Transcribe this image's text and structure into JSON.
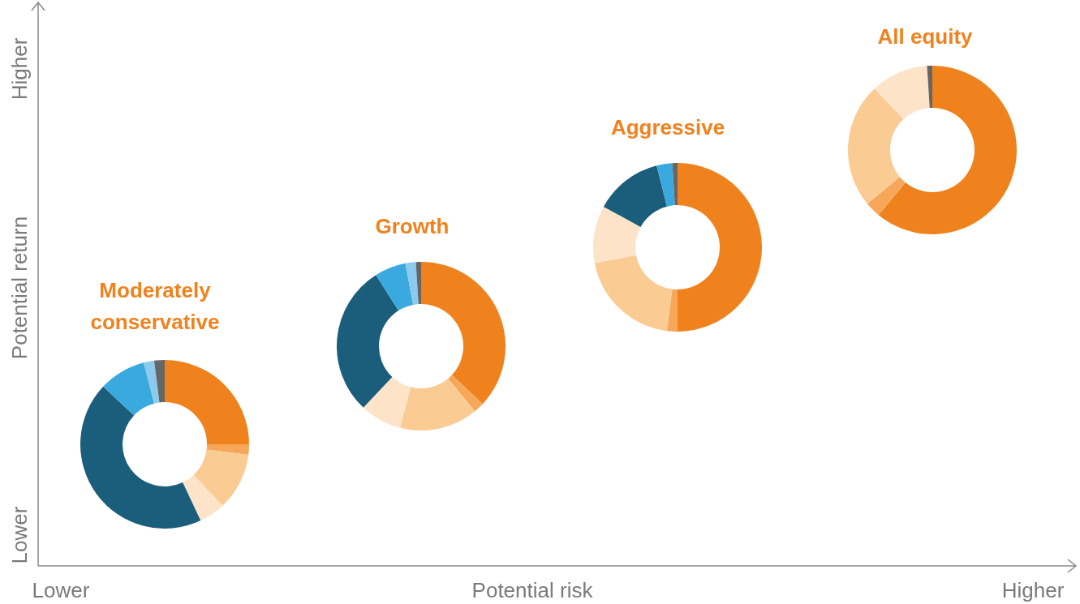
{
  "chart_data": [
    {
      "type": "donut",
      "title": "Moderately conservative",
      "categories": [
        null,
        null,
        null,
        null,
        null,
        null,
        null,
        null
      ],
      "values": [
        25,
        2,
        11,
        5,
        44,
        9,
        2,
        2
      ],
      "colors": [
        "#f0821e",
        "#f6a75a",
        "#fbcb94",
        "#fde3c8",
        "#1b5e7b",
        "#3aaade",
        "#8dcbee",
        "#666666"
      ]
    },
    {
      "type": "donut",
      "title": "Growth",
      "categories": [
        null,
        null,
        null,
        null,
        null,
        null,
        null,
        null
      ],
      "values": [
        37,
        2,
        15,
        8,
        29,
        6,
        2,
        1
      ],
      "colors": [
        "#f0821e",
        "#f6a75a",
        "#fbcb94",
        "#fde3c8",
        "#1b5e7b",
        "#3aaade",
        "#8dcbee",
        "#666666"
      ]
    },
    {
      "type": "donut",
      "title": "Aggressive",
      "categories": [
        null,
        null,
        null,
        null,
        null,
        null,
        null
      ],
      "values": [
        50,
        2,
        20,
        11,
        13,
        3,
        1
      ],
      "colors": [
        "#f0821e",
        "#f6a75a",
        "#fbcb94",
        "#fde3c8",
        "#1b5e7b",
        "#3aaade",
        "#666666"
      ]
    },
    {
      "type": "donut",
      "title": "All equity",
      "categories": [
        null,
        null,
        null,
        null,
        null
      ],
      "values": [
        61,
        3,
        24,
        11,
        1
      ],
      "colors": [
        "#f0821e",
        "#f6a75a",
        "#fbcb94",
        "#fde3c8",
        "#666666"
      ]
    },
    {
      "type": "other",
      "xlabel": "Potential risk",
      "ylabel": "Potential return",
      "annotations": [
        "Lower",
        "Higher",
        "Lower",
        "Higher"
      ]
    }
  ]
}
